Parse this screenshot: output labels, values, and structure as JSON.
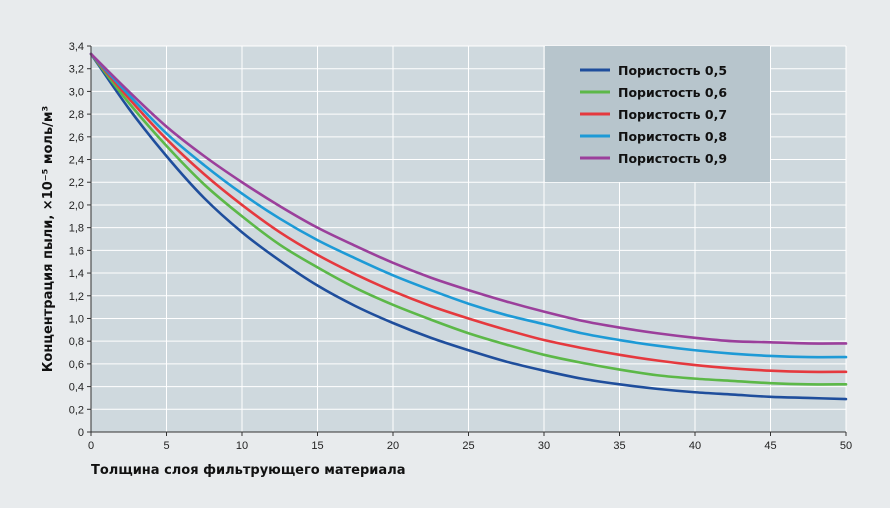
{
  "chart_data": {
    "type": "line",
    "title": "",
    "xlabel": "Толщина слоя фильтрующего материала",
    "ylabel": "Концентрация пыли, ×10⁻⁵ моль/м³",
    "xlim": [
      0,
      50
    ],
    "ylim": [
      0,
      3.4
    ],
    "x_ticks": [
      "0",
      "5",
      "10",
      "15",
      "20",
      "25",
      "30",
      "35",
      "40",
      "45",
      "50"
    ],
    "y_ticks": [
      "0",
      "0,2",
      "0,4",
      "0,6",
      "0,8",
      "1,0",
      "1,2",
      "1,4",
      "1,6",
      "1,8",
      "2,0",
      "2,2",
      "2,4",
      "2,6",
      "2,8",
      "3,0",
      "3,2",
      "3,4"
    ],
    "grid": true,
    "legend_position": "top-right",
    "x": [
      0,
      2.5,
      5,
      7.5,
      10,
      12.5,
      15,
      17.5,
      20,
      22.5,
      25,
      27.5,
      30,
      32.5,
      35,
      37.5,
      40,
      42.5,
      45,
      47.5,
      50
    ],
    "series": [
      {
        "name": "Пористость 0,5",
        "color": "#1f4e9c",
        "values": [
          3.33,
          2.85,
          2.43,
          2.06,
          1.76,
          1.51,
          1.29,
          1.11,
          0.96,
          0.83,
          0.72,
          0.62,
          0.54,
          0.47,
          0.42,
          0.38,
          0.35,
          0.33,
          0.31,
          0.3,
          0.29
        ]
      },
      {
        "name": "Пористость 0,6",
        "color": "#5cb848",
        "values": [
          3.33,
          2.9,
          2.52,
          2.18,
          1.9,
          1.65,
          1.45,
          1.27,
          1.12,
          0.99,
          0.87,
          0.77,
          0.68,
          0.61,
          0.55,
          0.5,
          0.47,
          0.45,
          0.43,
          0.42,
          0.42
        ]
      },
      {
        "name": "Пористость 0,7",
        "color": "#e5393e",
        "values": [
          3.33,
          2.94,
          2.58,
          2.27,
          2.0,
          1.76,
          1.56,
          1.39,
          1.24,
          1.11,
          1.0,
          0.9,
          0.81,
          0.74,
          0.68,
          0.63,
          0.59,
          0.56,
          0.54,
          0.53,
          0.53
        ]
      },
      {
        "name": "Пористость 0,8",
        "color": "#1d9ad6",
        "values": [
          3.33,
          2.97,
          2.63,
          2.35,
          2.1,
          1.88,
          1.69,
          1.53,
          1.38,
          1.25,
          1.13,
          1.03,
          0.95,
          0.87,
          0.81,
          0.76,
          0.72,
          0.69,
          0.67,
          0.66,
          0.66
        ]
      },
      {
        "name": "Пористость 0,9",
        "color": "#9b3f9b",
        "values": [
          3.33,
          3.0,
          2.69,
          2.43,
          2.2,
          1.99,
          1.8,
          1.64,
          1.49,
          1.36,
          1.25,
          1.15,
          1.06,
          0.98,
          0.92,
          0.87,
          0.83,
          0.8,
          0.79,
          0.78,
          0.78
        ]
      }
    ]
  }
}
